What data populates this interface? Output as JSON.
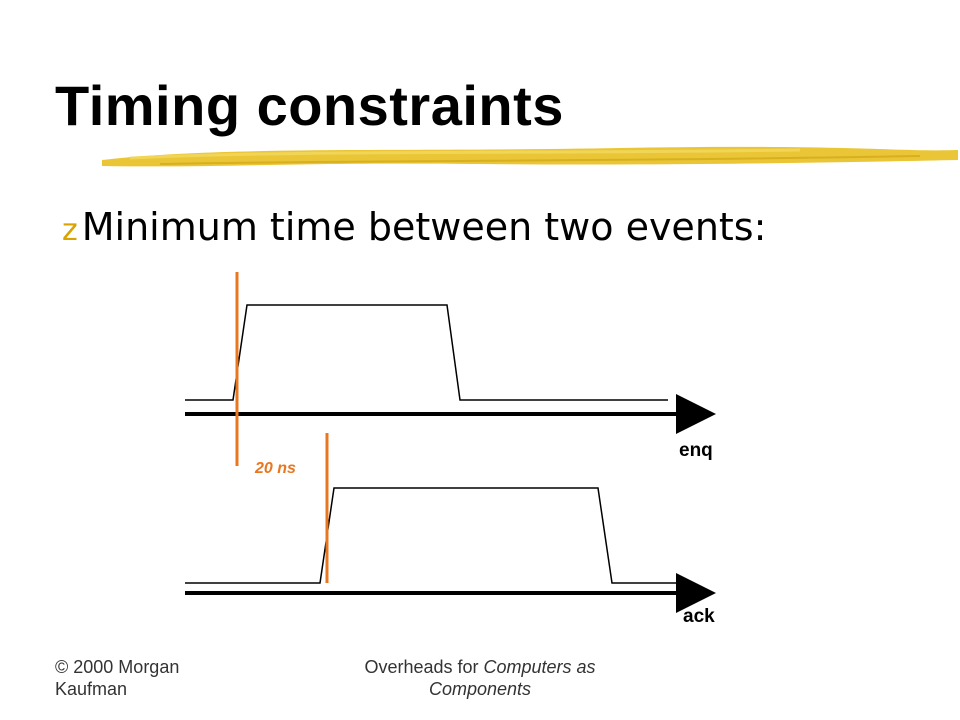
{
  "slide": {
    "title": "Timing constraints",
    "bullet_text": "Minimum time between two events:",
    "bullet_glyph": "z"
  },
  "diagram": {
    "signals": [
      {
        "name": "enq"
      },
      {
        "name": "ack"
      }
    ],
    "constraint_label": "20 ns"
  },
  "footer": {
    "left": "© 2000 Morgan Kaufman",
    "center_prefix": "Overheads for ",
    "center_italic": "Computers as Components"
  },
  "colors": {
    "title_underline": "#e8c020",
    "bullet": "#d9a300",
    "constraint": "#e87722",
    "waveform": "#000000"
  }
}
